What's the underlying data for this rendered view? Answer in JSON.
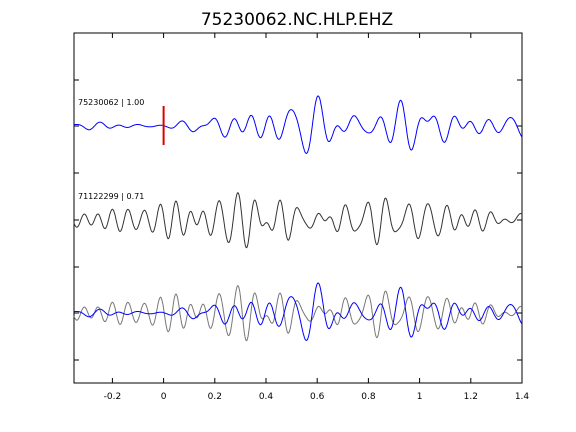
{
  "chart_data": {
    "type": "line",
    "title": "75230062.NC.HLP.EHZ",
    "xlabel": "",
    "ylabel": "",
    "xlim": [
      -0.35,
      1.4
    ],
    "xticks": [
      -0.2,
      0,
      0.2,
      0.4,
      0.6,
      0.8,
      1,
      1.2,
      1.4
    ],
    "xtick_labels": [
      "-0.2",
      "0",
      "0.2",
      "0.4",
      "0.6",
      "0.8",
      "1",
      "1.2",
      "1.4"
    ],
    "grid": false,
    "pick_time": 0,
    "series": [
      {
        "trace_label": "75230062 | 1.00",
        "color": "#0000ff",
        "offset_row": 1
      },
      {
        "trace_label": "71122299 | 0.71",
        "color": "#333333",
        "offset_row": 2
      },
      {
        "trace_label": "",
        "color": "#777777",
        "offset_row": 3,
        "overlay_of": "71122299"
      },
      {
        "trace_label": "",
        "color": "#0000ff",
        "offset_row": 3,
        "overlay_of": "75230062"
      }
    ],
    "pick_marker_color": "#dd0000"
  }
}
